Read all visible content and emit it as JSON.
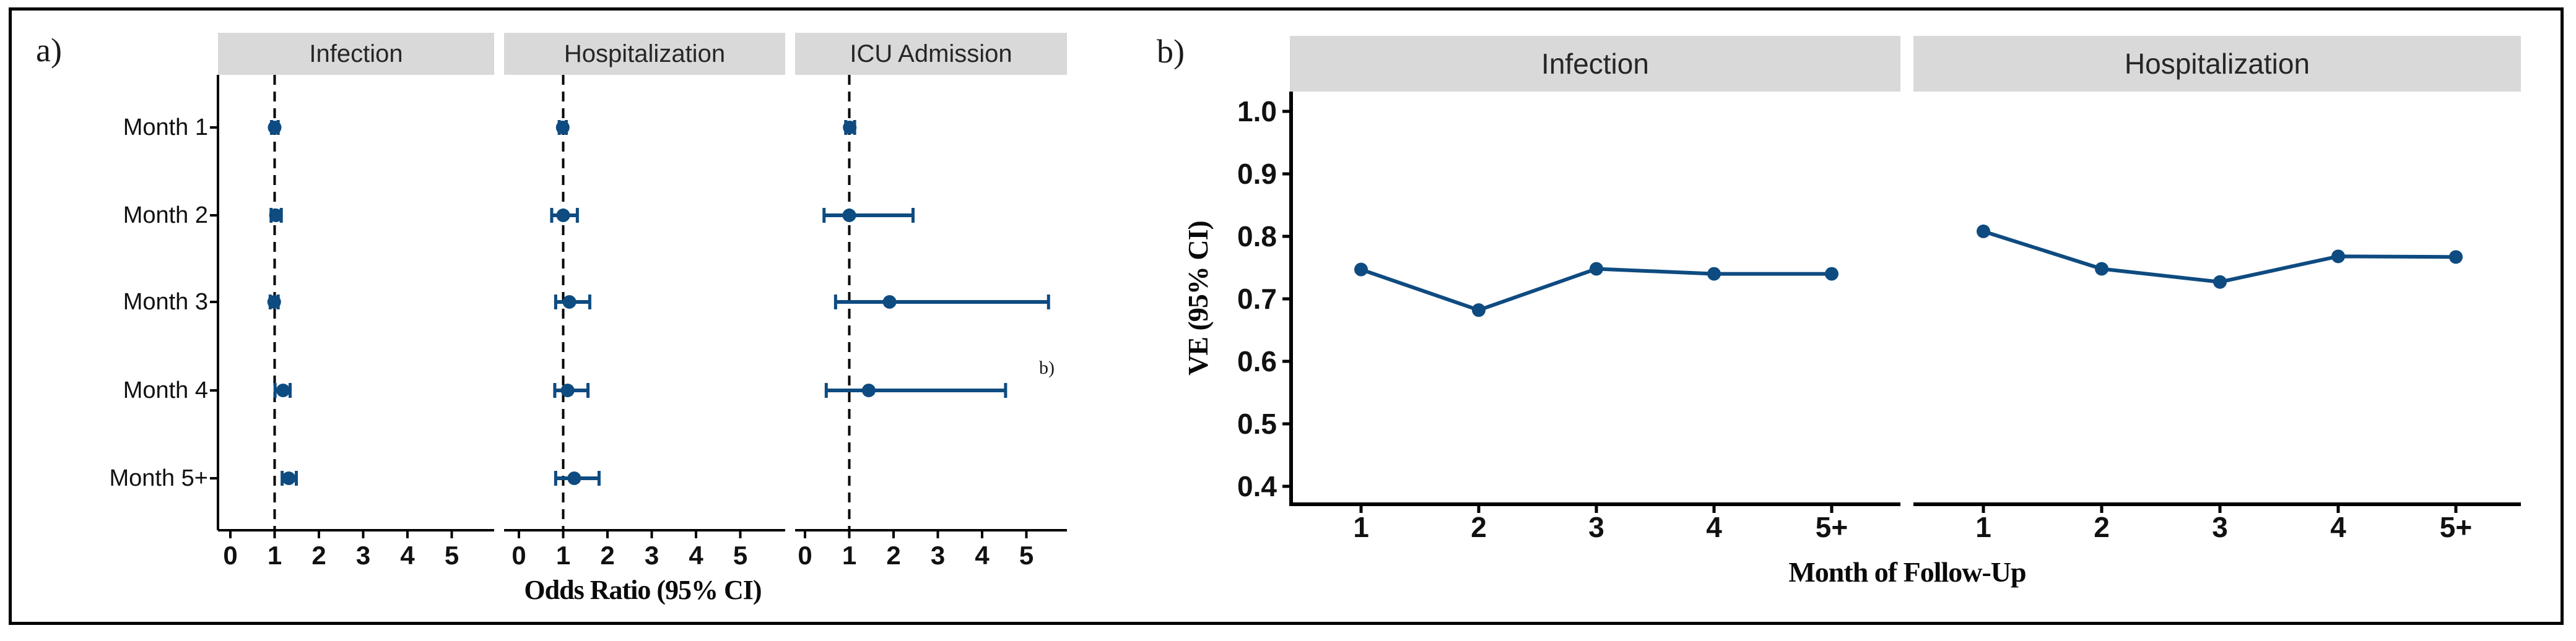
{
  "figure": {
    "panel_a": {
      "label": "a)",
      "facet_titles": [
        "Infection",
        "Hospitalization",
        "ICU Admission"
      ],
      "y_category_labels": [
        "Month 1",
        "Month 2",
        "Month 3",
        "Month 4",
        "Month 5+"
      ],
      "x_tick_labels": [
        "0",
        "1",
        "2",
        "3",
        "4",
        "5"
      ],
      "x_axis_title": "Odds Ratio (95% CI)",
      "stray_annotation": "b)"
    },
    "panel_b": {
      "label": "b)",
      "facet_titles": [
        "Infection",
        "Hospitalization"
      ],
      "x_tick_labels": [
        "1",
        "2",
        "3",
        "4",
        "5+"
      ],
      "y_tick_labels": [
        "1.0",
        "0.9",
        "0.8",
        "0.7",
        "0.6",
        "0.5",
        "0.4"
      ],
      "x_axis_title": "Month of Follow-Up",
      "y_axis_title": "VE (95% CI)"
    },
    "colors": {
      "accent_blue": "#0e4b80",
      "strip_grey": "#d9d9d9",
      "axis_black": "#000000"
    }
  },
  "chart_data": [
    {
      "type": "scatter",
      "subtype": "forest-plot",
      "title": "Odds ratios with 95% CI by month of follow-up",
      "xlabel": "Odds Ratio (95% CI)",
      "categories": [
        "Month 1",
        "Month 2",
        "Month 3",
        "Month 4",
        "Month 5+"
      ],
      "xlim": [
        -0.3,
        5.95
      ],
      "x_ticks": [
        0,
        1,
        2,
        3,
        4,
        5
      ],
      "reference_line_x": 1,
      "grid": false,
      "facets": [
        {
          "name": "Infection",
          "or": [
            1.0,
            1.03,
            0.99,
            1.19,
            1.32
          ],
          "ci_low": [
            0.93,
            0.92,
            0.9,
            1.01,
            1.17
          ],
          "ci_high": [
            1.08,
            1.15,
            1.08,
            1.35,
            1.49
          ]
        },
        {
          "name": "Hospitalization",
          "or": [
            0.99,
            1.0,
            1.14,
            1.1,
            1.25
          ],
          "ci_low": [
            0.91,
            0.74,
            0.83,
            0.81,
            0.83
          ],
          "ci_high": [
            1.07,
            1.32,
            1.6,
            1.56,
            1.81
          ]
        },
        {
          "name": "ICU Admission",
          "or": [
            1.01,
            1.0,
            1.91,
            1.44,
            null
          ],
          "ci_low": [
            0.92,
            0.43,
            0.69,
            0.48,
            null
          ],
          "ci_high": [
            1.12,
            2.44,
            5.5,
            4.53,
            null
          ]
        }
      ]
    },
    {
      "type": "line",
      "title": "Vaccine effectiveness (VE) with 95% CI by month of follow-up",
      "xlabel": "Month of Follow-Up",
      "ylabel": "VE (95% CI)",
      "x_categories": [
        "1",
        "2",
        "3",
        "4",
        "5+"
      ],
      "ylim": [
        0.35,
        1.05
      ],
      "y_ticks": [
        1.0,
        0.9,
        0.8,
        0.7,
        0.6,
        0.5,
        0.4
      ],
      "grid": false,
      "legend": "none",
      "series": [
        {
          "name": "Infection",
          "values": [
            0.747,
            0.682,
            0.748,
            0.74,
            0.74
          ]
        },
        {
          "name": "Hospitalization",
          "values": [
            0.808,
            0.748,
            0.727,
            0.768,
            0.767
          ]
        }
      ]
    }
  ]
}
